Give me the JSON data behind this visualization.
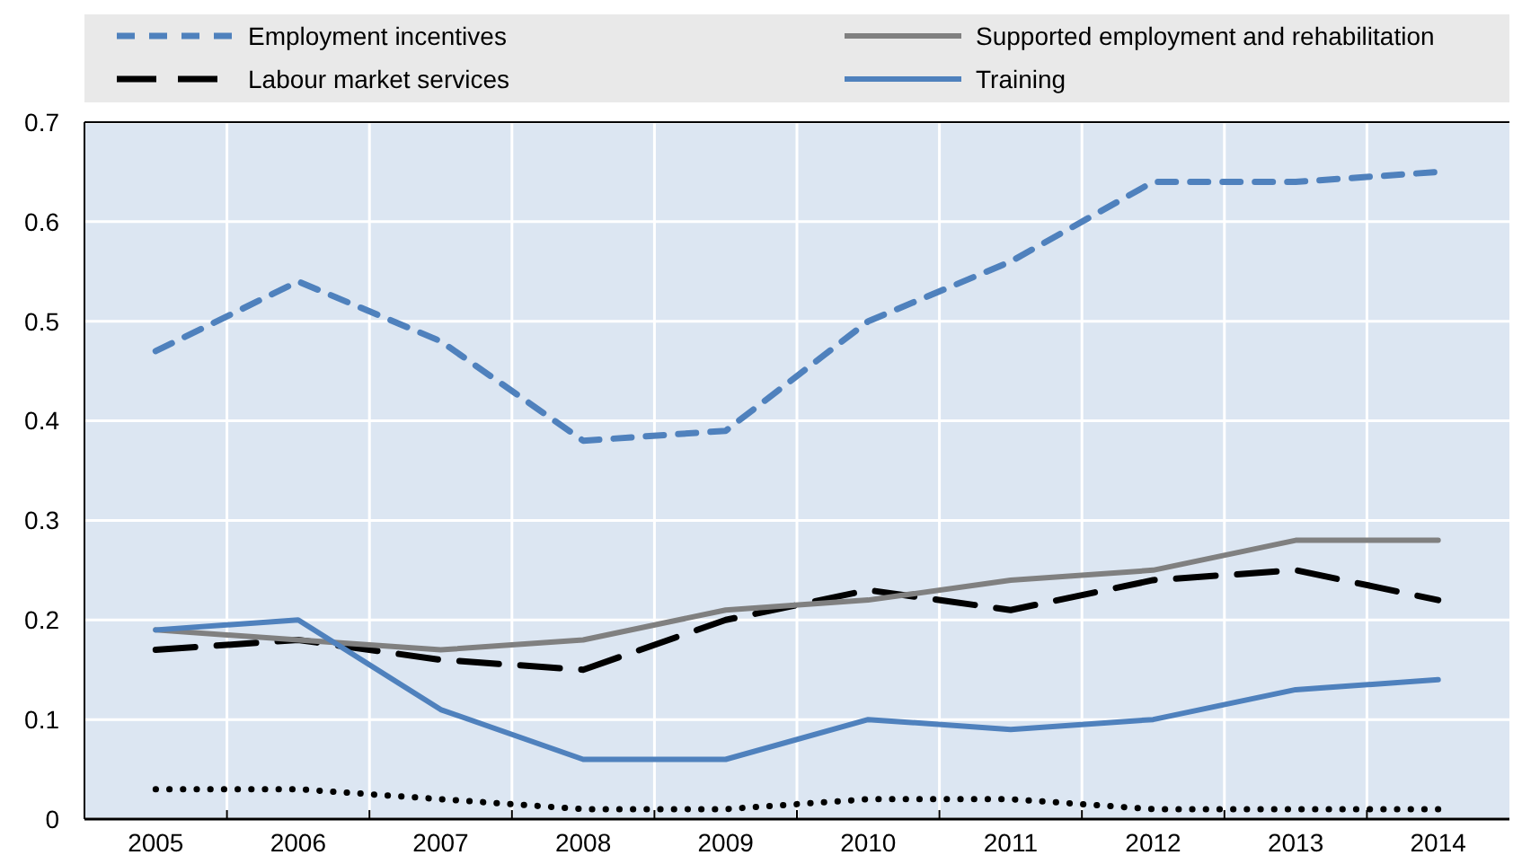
{
  "chart_data": {
    "type": "line",
    "categories": [
      "2005",
      "2006",
      "2007",
      "2008",
      "2009",
      "2010",
      "2011",
      "2012",
      "2013",
      "2014"
    ],
    "ylim": [
      0,
      0.7
    ],
    "yticks": [
      0,
      0.1,
      0.2,
      0.3,
      0.4,
      0.5,
      0.6,
      0.7
    ],
    "grid": true,
    "legend": "top",
    "series": [
      {
        "name": "Employment incentives",
        "color": "#4f81bd",
        "line_style": "dashed",
        "values": [
          0.47,
          0.54,
          0.48,
          0.38,
          0.39,
          0.5,
          0.56,
          0.64,
          0.64,
          0.65
        ]
      },
      {
        "name": "Labour market services",
        "color": "#000000",
        "line_style": "longdash",
        "values": [
          0.17,
          0.18,
          0.16,
          0.15,
          0.2,
          0.23,
          0.21,
          0.24,
          0.25,
          0.22
        ]
      },
      {
        "name": "Supported employment and rehabilitation",
        "color": "#808080",
        "line_style": "solid",
        "values": [
          0.19,
          0.18,
          0.17,
          0.18,
          0.21,
          0.22,
          0.24,
          0.25,
          0.28,
          0.28
        ]
      },
      {
        "name": "Training",
        "color": "#4f81bd",
        "line_style": "solid",
        "values": [
          0.19,
          0.2,
          0.11,
          0.06,
          0.06,
          0.1,
          0.09,
          0.1,
          0.13,
          0.14
        ]
      },
      {
        "color": "#000000",
        "line_style": "dotted",
        "values": [
          0.03,
          0.03,
          0.02,
          0.01,
          0.01,
          0.02,
          0.02,
          0.01,
          0.01,
          0.01
        ]
      }
    ]
  }
}
